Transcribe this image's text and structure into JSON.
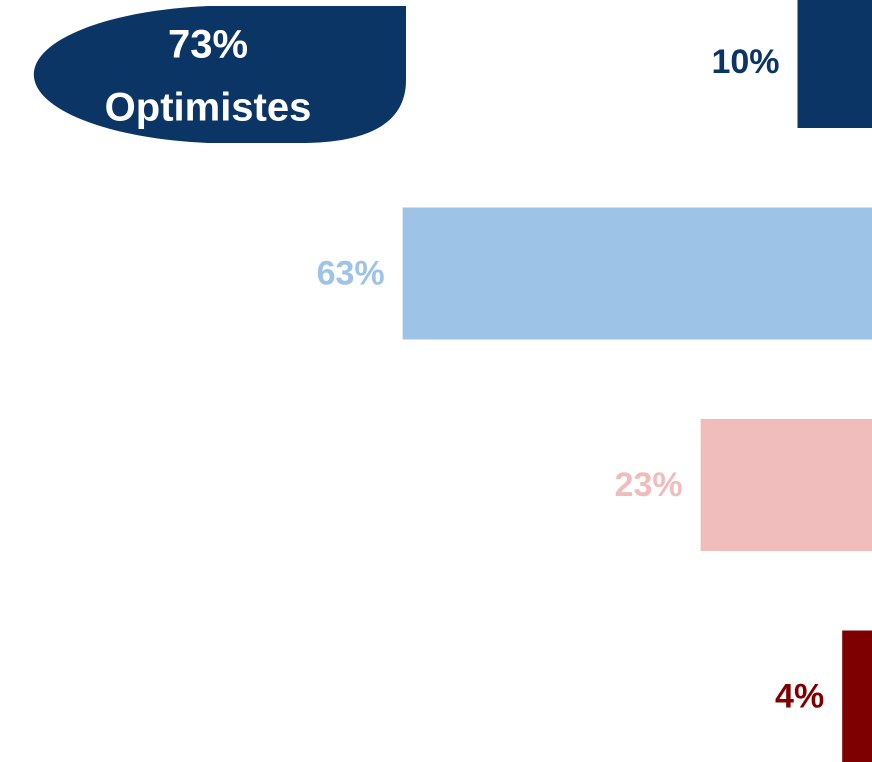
{
  "chart_data": {
    "type": "bar",
    "orientation": "horizontal",
    "annotations": [
      "73%",
      "Optimistes"
    ],
    "values": [
      10,
      63,
      23,
      4
    ],
    "value_labels": [
      "10%",
      "63%",
      "23%",
      "4%"
    ],
    "colors": [
      "#0b3565",
      "#9dc3e6",
      "#f0bcbc",
      "#7f0000"
    ]
  }
}
